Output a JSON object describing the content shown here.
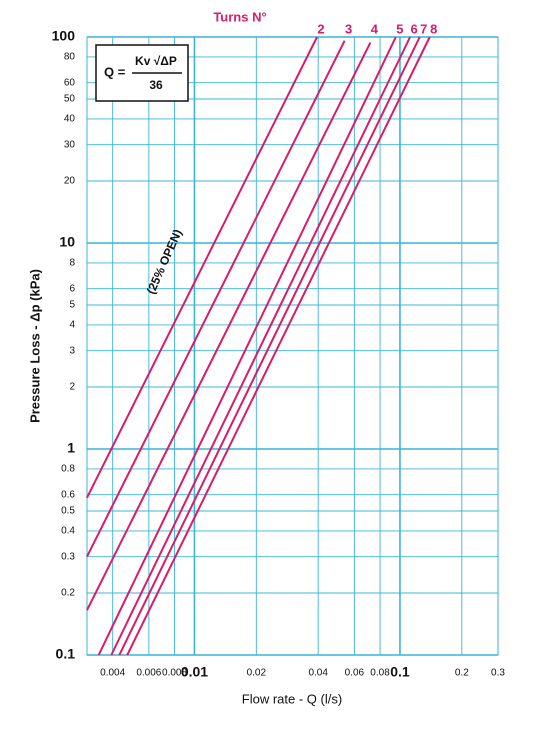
{
  "chart_data": {
    "type": "line",
    "legend_title": "Turns N°",
    "x_label": "Flow rate - Q (l/s)",
    "y_label": "Pressure Loss  - Δp (kPa)",
    "annotation": "(25% OPEN)",
    "formula": {
      "lhs": "Q =",
      "numerator": "Kv √ΔP",
      "denominator": "36"
    },
    "x_scale": "log",
    "y_scale": "log",
    "grid": true,
    "grid_color": "#3ab4d8",
    "xlim": [
      0.003,
      0.3
    ],
    "ylim": [
      0.1,
      100
    ],
    "xticks": [
      0.004,
      0.006,
      0.008,
      0.01,
      0.02,
      0.04,
      0.06,
      0.08,
      0.1,
      0.2,
      0.3
    ],
    "yticks": [
      0.1,
      0.2,
      0.3,
      0.4,
      0.5,
      0.6,
      0.8,
      1,
      2,
      3,
      4,
      5,
      6,
      8,
      10,
      20,
      30,
      40,
      50,
      60,
      80,
      100
    ],
    "series": [
      {
        "name": "2",
        "color": "#d81b6b",
        "x": [
          0.003,
          0.0395
        ],
        "values": [
          0.58,
          100
        ]
      },
      {
        "name": "3",
        "color": "#d81b6b",
        "x": [
          0.003,
          0.0538
        ],
        "values": [
          0.3,
          96
        ]
      },
      {
        "name": "4",
        "color": "#d81b6b",
        "x": [
          0.003,
          0.0718
        ],
        "values": [
          0.165,
          94
        ]
      },
      {
        "name": "5",
        "color": "#d81b6b",
        "x": [
          0.00342,
          0.0955
        ],
        "values": [
          0.1,
          100
        ]
      },
      {
        "name": "6",
        "color": "#d81b6b",
        "x": [
          0.00394,
          0.112
        ],
        "values": [
          0.1,
          100
        ]
      },
      {
        "name": "7",
        "color": "#d81b6b",
        "x": [
          0.00431,
          0.1248
        ],
        "values": [
          0.1,
          100
        ]
      },
      {
        "name": "8",
        "color": "#d81b6b",
        "x": [
          0.00471,
          0.1396
        ],
        "values": [
          0.1,
          100
        ]
      }
    ]
  }
}
